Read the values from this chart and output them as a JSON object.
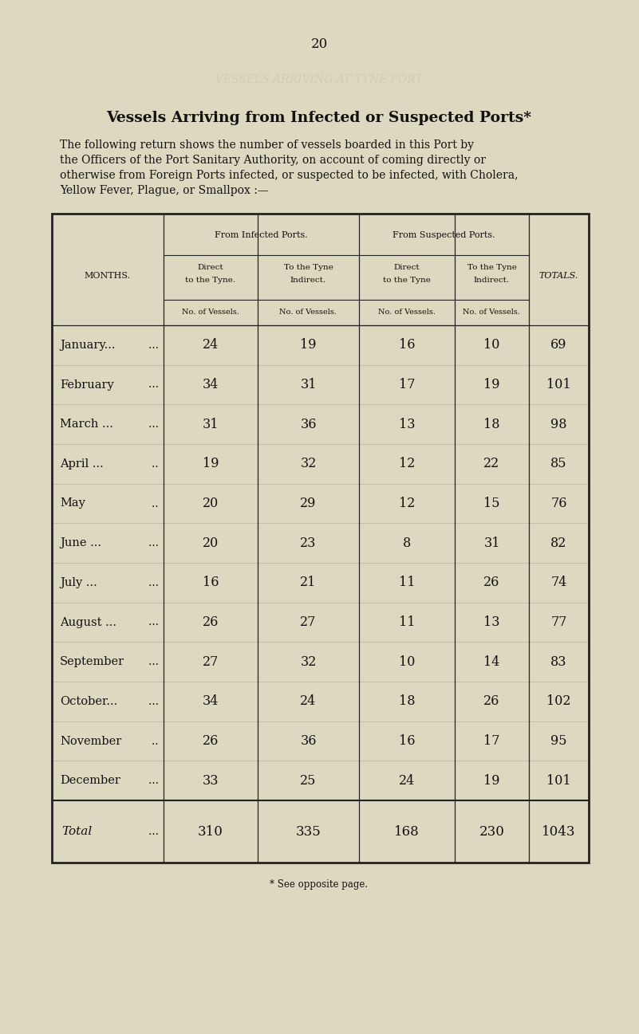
{
  "page_number": "20",
  "background_color": "#ddd8c0",
  "title": "Vessels Arriving from Infected or Suspected Ports*",
  "body_text": [
    "The following return shows the number of vessels boarded in this Port by",
    "the Officers of the Port Sanitary Authority, on account of coming directly or",
    "otherwise from Foreign Ports infected, or suspected to be infected, with Cholera,",
    "Yellow Fever, Plague, or Smallpox :—"
  ],
  "watermark_text": "VESSELS ARRIVING AT TYNE PORT",
  "col_header_infected": "From Infected Ports.",
  "col_header_suspected": "From Suspected Ports.",
  "sub_col_1a": "Direct",
  "sub_col_1b": "to the Tyne.",
  "sub_col_2a": "To the Tyne",
  "sub_col_2b": "Indirect.",
  "sub_col_3a": "Direct",
  "sub_col_3b": "to the Tyne",
  "sub_col_4a": "To the Tyne",
  "sub_col_4b": "Indirect.",
  "no_of_vessels": "No. of Vessels.",
  "months_header": "MONTHS.",
  "totals_header": "TOTALS.",
  "month_names": [
    "January...",
    "February",
    "March ...",
    "April ...",
    "May",
    "June ...",
    "July ...",
    "August ...",
    "September",
    "October...",
    "November",
    "December"
  ],
  "month_dots": [
    "   ...",
    "   ...",
    "   ...",
    "   ..",
    "   ..",
    "   ...",
    "   ...",
    "   ...",
    "   ...",
    "   ...",
    "   ..",
    "   ..."
  ],
  "direct_infected": [
    24,
    34,
    31,
    19,
    20,
    20,
    16,
    26,
    27,
    34,
    26,
    33
  ],
  "indirect_infected": [
    19,
    31,
    36,
    32,
    29,
    23,
    21,
    27,
    32,
    24,
    36,
    25
  ],
  "direct_suspected": [
    16,
    17,
    13,
    12,
    12,
    8,
    11,
    11,
    10,
    18,
    16,
    24
  ],
  "indirect_suspected": [
    10,
    19,
    18,
    22,
    15,
    31,
    26,
    13,
    14,
    26,
    17,
    19
  ],
  "totals": [
    69,
    101,
    98,
    85,
    76,
    82,
    74,
    77,
    83,
    102,
    95,
    101
  ],
  "total_label": "Total",
  "total_dots": "   ...",
  "total_d_inf": "310",
  "total_ind_inf": "335",
  "total_d_sus": "168",
  "total_ind_sus": "230",
  "grand_total": "1043",
  "footnote": "* See opposite page.",
  "text_color": "#111111",
  "watermark_color": "#c8c2a8",
  "line_color": "#222222"
}
